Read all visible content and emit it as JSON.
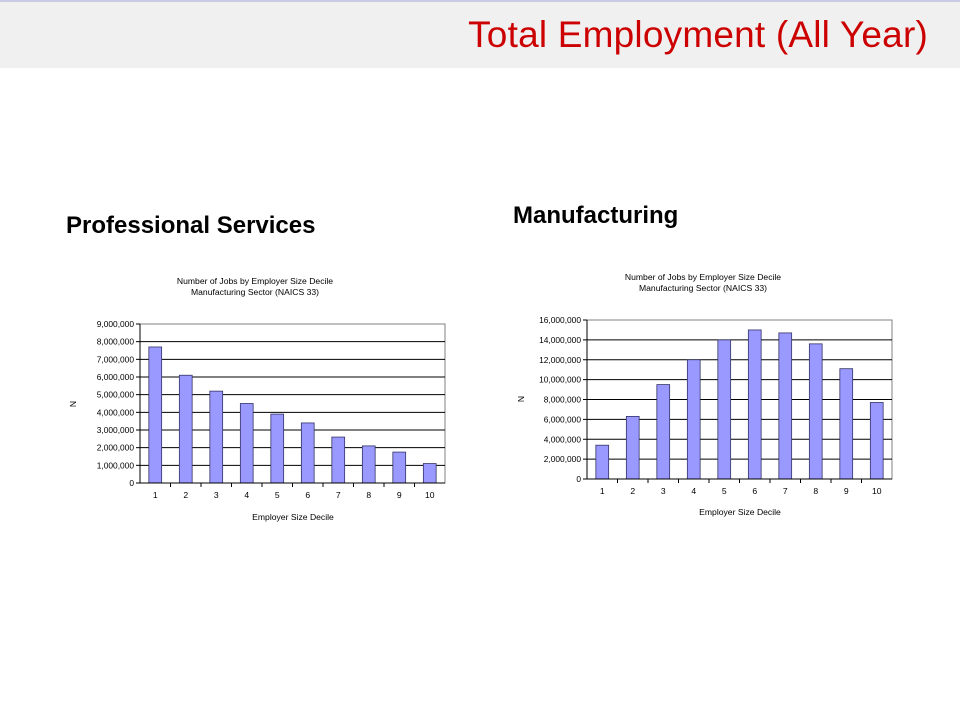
{
  "slide": {
    "title": "Total Employment (All Year)",
    "colors": {
      "title": "#cc0000",
      "header_band": "#f0f0f0",
      "bar_fill": "#9999ff",
      "bar_stroke": "#333366"
    }
  },
  "sections": {
    "left_heading": "Professional Services",
    "right_heading": "Manufacturing"
  },
  "chart_data": [
    {
      "type": "bar",
      "title": "Number of Jobs by Employer Size Decile",
      "subtitle": "Manufacturing Sector (NAICS 33)",
      "xlabel": "Employer Size Decile",
      "ylabel": "N",
      "categories": [
        "1",
        "2",
        "3",
        "4",
        "5",
        "6",
        "7",
        "8",
        "9",
        "10"
      ],
      "values": [
        7700000,
        6100000,
        5200000,
        4500000,
        3900000,
        3400000,
        2600000,
        2100000,
        1750000,
        1100000
      ],
      "ylim": [
        0,
        9000000
      ],
      "yticks": [
        "0",
        "1,000,000",
        "2,000,000",
        "3,000,000",
        "4,000,000",
        "5,000,000",
        "6,000,000",
        "7,000,000",
        "8,000,000",
        "9,000,000"
      ],
      "grid": true,
      "legend": "none"
    },
    {
      "type": "bar",
      "title": "Number of Jobs by Employer Size Decile",
      "subtitle": "Manufacturing Sector (NAICS 33)",
      "xlabel": "Employer Size Decile",
      "ylabel": "N",
      "categories": [
        "1",
        "2",
        "3",
        "4",
        "5",
        "6",
        "7",
        "8",
        "9",
        "10"
      ],
      "values": [
        3400000,
        6300000,
        9500000,
        12000000,
        14000000,
        15000000,
        14700000,
        13600000,
        11100000,
        7700000
      ],
      "ylim": [
        0,
        16000000
      ],
      "yticks": [
        "0",
        "2,000,000",
        "4,000,000",
        "6,000,000",
        "8,000,000",
        "10,000,000",
        "12,000,000",
        "14,000,000",
        "16,000,000"
      ],
      "grid": true,
      "legend": "none"
    }
  ]
}
